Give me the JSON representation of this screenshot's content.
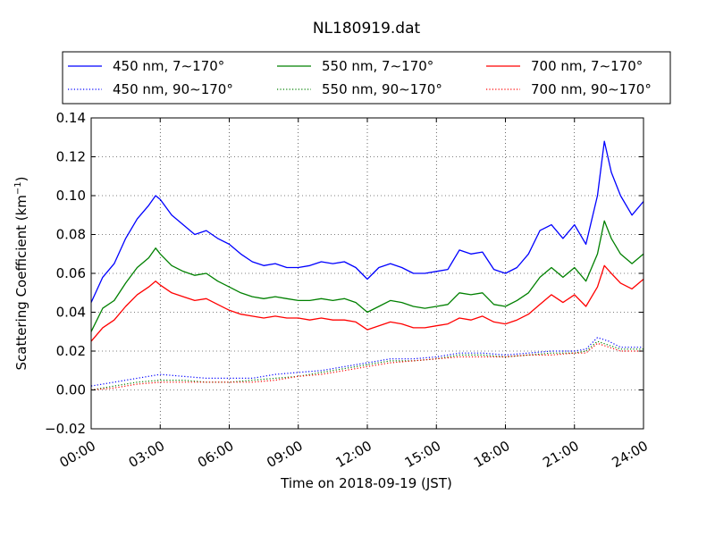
{
  "chart_data": {
    "type": "line",
    "title": "NL180919.dat",
    "xlabel": "Time on 2018-09-19 (JST)",
    "ylabel_main": "Scattering Coefficient (km",
    "ylabel_sup": "−1",
    "ylabel_close": ")",
    "xlim": [
      0,
      24
    ],
    "ylim": [
      -0.02,
      0.14
    ],
    "x_ticks": [
      0,
      3,
      6,
      9,
      12,
      15,
      18,
      21,
      24
    ],
    "x_tick_labels": [
      "00:00",
      "03:00",
      "06:00",
      "09:00",
      "12:00",
      "15:00",
      "18:00",
      "21:00",
      "24:00"
    ],
    "y_ticks": [
      -0.02,
      0.0,
      0.02,
      0.04,
      0.06,
      0.08,
      0.1,
      0.12,
      0.14
    ],
    "y_tick_labels": [
      "−0.02",
      "0.00",
      "0.02",
      "0.04",
      "0.06",
      "0.08",
      "0.10",
      "0.12",
      "0.14"
    ],
    "grid": true,
    "legend_position": "top",
    "series": [
      {
        "name": "450 nm, 7∼170°",
        "color": "#0000ff",
        "style": "solid",
        "x": [
          0.0,
          0.5,
          1.0,
          1.5,
          2.0,
          2.5,
          2.8,
          3.0,
          3.5,
          4.0,
          4.5,
          5.0,
          5.5,
          6.0,
          6.5,
          7.0,
          7.5,
          8.0,
          8.5,
          9.0,
          9.5,
          10.0,
          10.5,
          11.0,
          11.5,
          12.0,
          12.5,
          13.0,
          13.5,
          14.0,
          14.5,
          15.0,
          15.5,
          16.0,
          16.5,
          17.0,
          17.5,
          18.0,
          18.5,
          19.0,
          19.5,
          20.0,
          20.5,
          21.0,
          21.5,
          22.0,
          22.3,
          22.6,
          23.0,
          23.5,
          24.0
        ],
        "y": [
          0.045,
          0.058,
          0.065,
          0.078,
          0.088,
          0.095,
          0.1,
          0.098,
          0.09,
          0.085,
          0.08,
          0.082,
          0.078,
          0.075,
          0.07,
          0.066,
          0.064,
          0.065,
          0.063,
          0.063,
          0.064,
          0.066,
          0.065,
          0.066,
          0.063,
          0.057,
          0.063,
          0.065,
          0.063,
          0.06,
          0.06,
          0.061,
          0.062,
          0.072,
          0.07,
          0.071,
          0.062,
          0.06,
          0.063,
          0.07,
          0.082,
          0.085,
          0.078,
          0.085,
          0.075,
          0.1,
          0.128,
          0.112,
          0.1,
          0.09,
          0.097
        ]
      },
      {
        "name": "550 nm, 7∼170°",
        "color": "#008000",
        "style": "solid",
        "x": [
          0.0,
          0.5,
          1.0,
          1.5,
          2.0,
          2.5,
          2.8,
          3.0,
          3.5,
          4.0,
          4.5,
          5.0,
          5.5,
          6.0,
          6.5,
          7.0,
          7.5,
          8.0,
          8.5,
          9.0,
          9.5,
          10.0,
          10.5,
          11.0,
          11.5,
          12.0,
          12.5,
          13.0,
          13.5,
          14.0,
          14.5,
          15.0,
          15.5,
          16.0,
          16.5,
          17.0,
          17.5,
          18.0,
          18.5,
          19.0,
          19.5,
          20.0,
          20.5,
          21.0,
          21.5,
          22.0,
          22.3,
          22.6,
          23.0,
          23.5,
          24.0
        ],
        "y": [
          0.03,
          0.042,
          0.046,
          0.055,
          0.063,
          0.068,
          0.073,
          0.07,
          0.064,
          0.061,
          0.059,
          0.06,
          0.056,
          0.053,
          0.05,
          0.048,
          0.047,
          0.048,
          0.047,
          0.046,
          0.046,
          0.047,
          0.046,
          0.047,
          0.045,
          0.04,
          0.043,
          0.046,
          0.045,
          0.043,
          0.042,
          0.043,
          0.044,
          0.05,
          0.049,
          0.05,
          0.044,
          0.043,
          0.046,
          0.05,
          0.058,
          0.063,
          0.058,
          0.063,
          0.056,
          0.07,
          0.087,
          0.078,
          0.07,
          0.065,
          0.07
        ]
      },
      {
        "name": "700 nm, 7∼170°",
        "color": "#ff0000",
        "style": "solid",
        "x": [
          0.0,
          0.5,
          1.0,
          1.5,
          2.0,
          2.5,
          2.8,
          3.0,
          3.5,
          4.0,
          4.5,
          5.0,
          5.5,
          6.0,
          6.5,
          7.0,
          7.5,
          8.0,
          8.5,
          9.0,
          9.5,
          10.0,
          10.5,
          11.0,
          11.5,
          12.0,
          12.5,
          13.0,
          13.5,
          14.0,
          14.5,
          15.0,
          15.5,
          16.0,
          16.5,
          17.0,
          17.5,
          18.0,
          18.5,
          19.0,
          19.5,
          20.0,
          20.5,
          21.0,
          21.5,
          22.0,
          22.3,
          22.6,
          23.0,
          23.5,
          24.0
        ],
        "y": [
          0.025,
          0.032,
          0.036,
          0.043,
          0.049,
          0.053,
          0.056,
          0.054,
          0.05,
          0.048,
          0.046,
          0.047,
          0.044,
          0.041,
          0.039,
          0.038,
          0.037,
          0.038,
          0.037,
          0.037,
          0.036,
          0.037,
          0.036,
          0.036,
          0.035,
          0.031,
          0.033,
          0.035,
          0.034,
          0.032,
          0.032,
          0.033,
          0.034,
          0.037,
          0.036,
          0.038,
          0.035,
          0.034,
          0.036,
          0.039,
          0.044,
          0.049,
          0.045,
          0.049,
          0.043,
          0.053,
          0.064,
          0.06,
          0.055,
          0.052,
          0.057
        ]
      },
      {
        "name": "450 nm, 90∼170°",
        "color": "#0000ff",
        "style": "dotted",
        "x": [
          0,
          1,
          2,
          3,
          4,
          5,
          6,
          7,
          8,
          9,
          10,
          11,
          12,
          13,
          14,
          15,
          16,
          17,
          18,
          19,
          20,
          21,
          21.5,
          22,
          22.5,
          23,
          24
        ],
        "y": [
          0.002,
          0.004,
          0.006,
          0.008,
          0.007,
          0.006,
          0.006,
          0.006,
          0.008,
          0.009,
          0.01,
          0.012,
          0.014,
          0.016,
          0.016,
          0.017,
          0.019,
          0.019,
          0.018,
          0.019,
          0.02,
          0.02,
          0.021,
          0.027,
          0.025,
          0.022,
          0.022
        ]
      },
      {
        "name": "550 nm, 90∼170°",
        "color": "#008000",
        "style": "dotted",
        "x": [
          0,
          1,
          2,
          3,
          4,
          5,
          6,
          7,
          8,
          9,
          10,
          11,
          12,
          13,
          14,
          15,
          16,
          17,
          18,
          19,
          20,
          21,
          21.5,
          22,
          22.5,
          23,
          24
        ],
        "y": [
          0.0,
          0.002,
          0.004,
          0.005,
          0.005,
          0.004,
          0.004,
          0.005,
          0.006,
          0.007,
          0.009,
          0.011,
          0.013,
          0.015,
          0.015,
          0.016,
          0.018,
          0.018,
          0.017,
          0.018,
          0.019,
          0.019,
          0.02,
          0.025,
          0.023,
          0.021,
          0.021
        ]
      },
      {
        "name": "700 nm, 90∼170°",
        "color": "#ff0000",
        "style": "dotted",
        "x": [
          0,
          1,
          2,
          3,
          4,
          5,
          6,
          7,
          8,
          9,
          10,
          11,
          12,
          13,
          14,
          15,
          16,
          17,
          18,
          19,
          20,
          21,
          21.5,
          22,
          22.5,
          23,
          24
        ],
        "y": [
          0.0,
          0.001,
          0.003,
          0.004,
          0.004,
          0.004,
          0.004,
          0.004,
          0.005,
          0.007,
          0.008,
          0.01,
          0.012,
          0.014,
          0.015,
          0.016,
          0.017,
          0.017,
          0.017,
          0.018,
          0.018,
          0.019,
          0.019,
          0.024,
          0.022,
          0.02,
          0.02
        ]
      }
    ]
  }
}
